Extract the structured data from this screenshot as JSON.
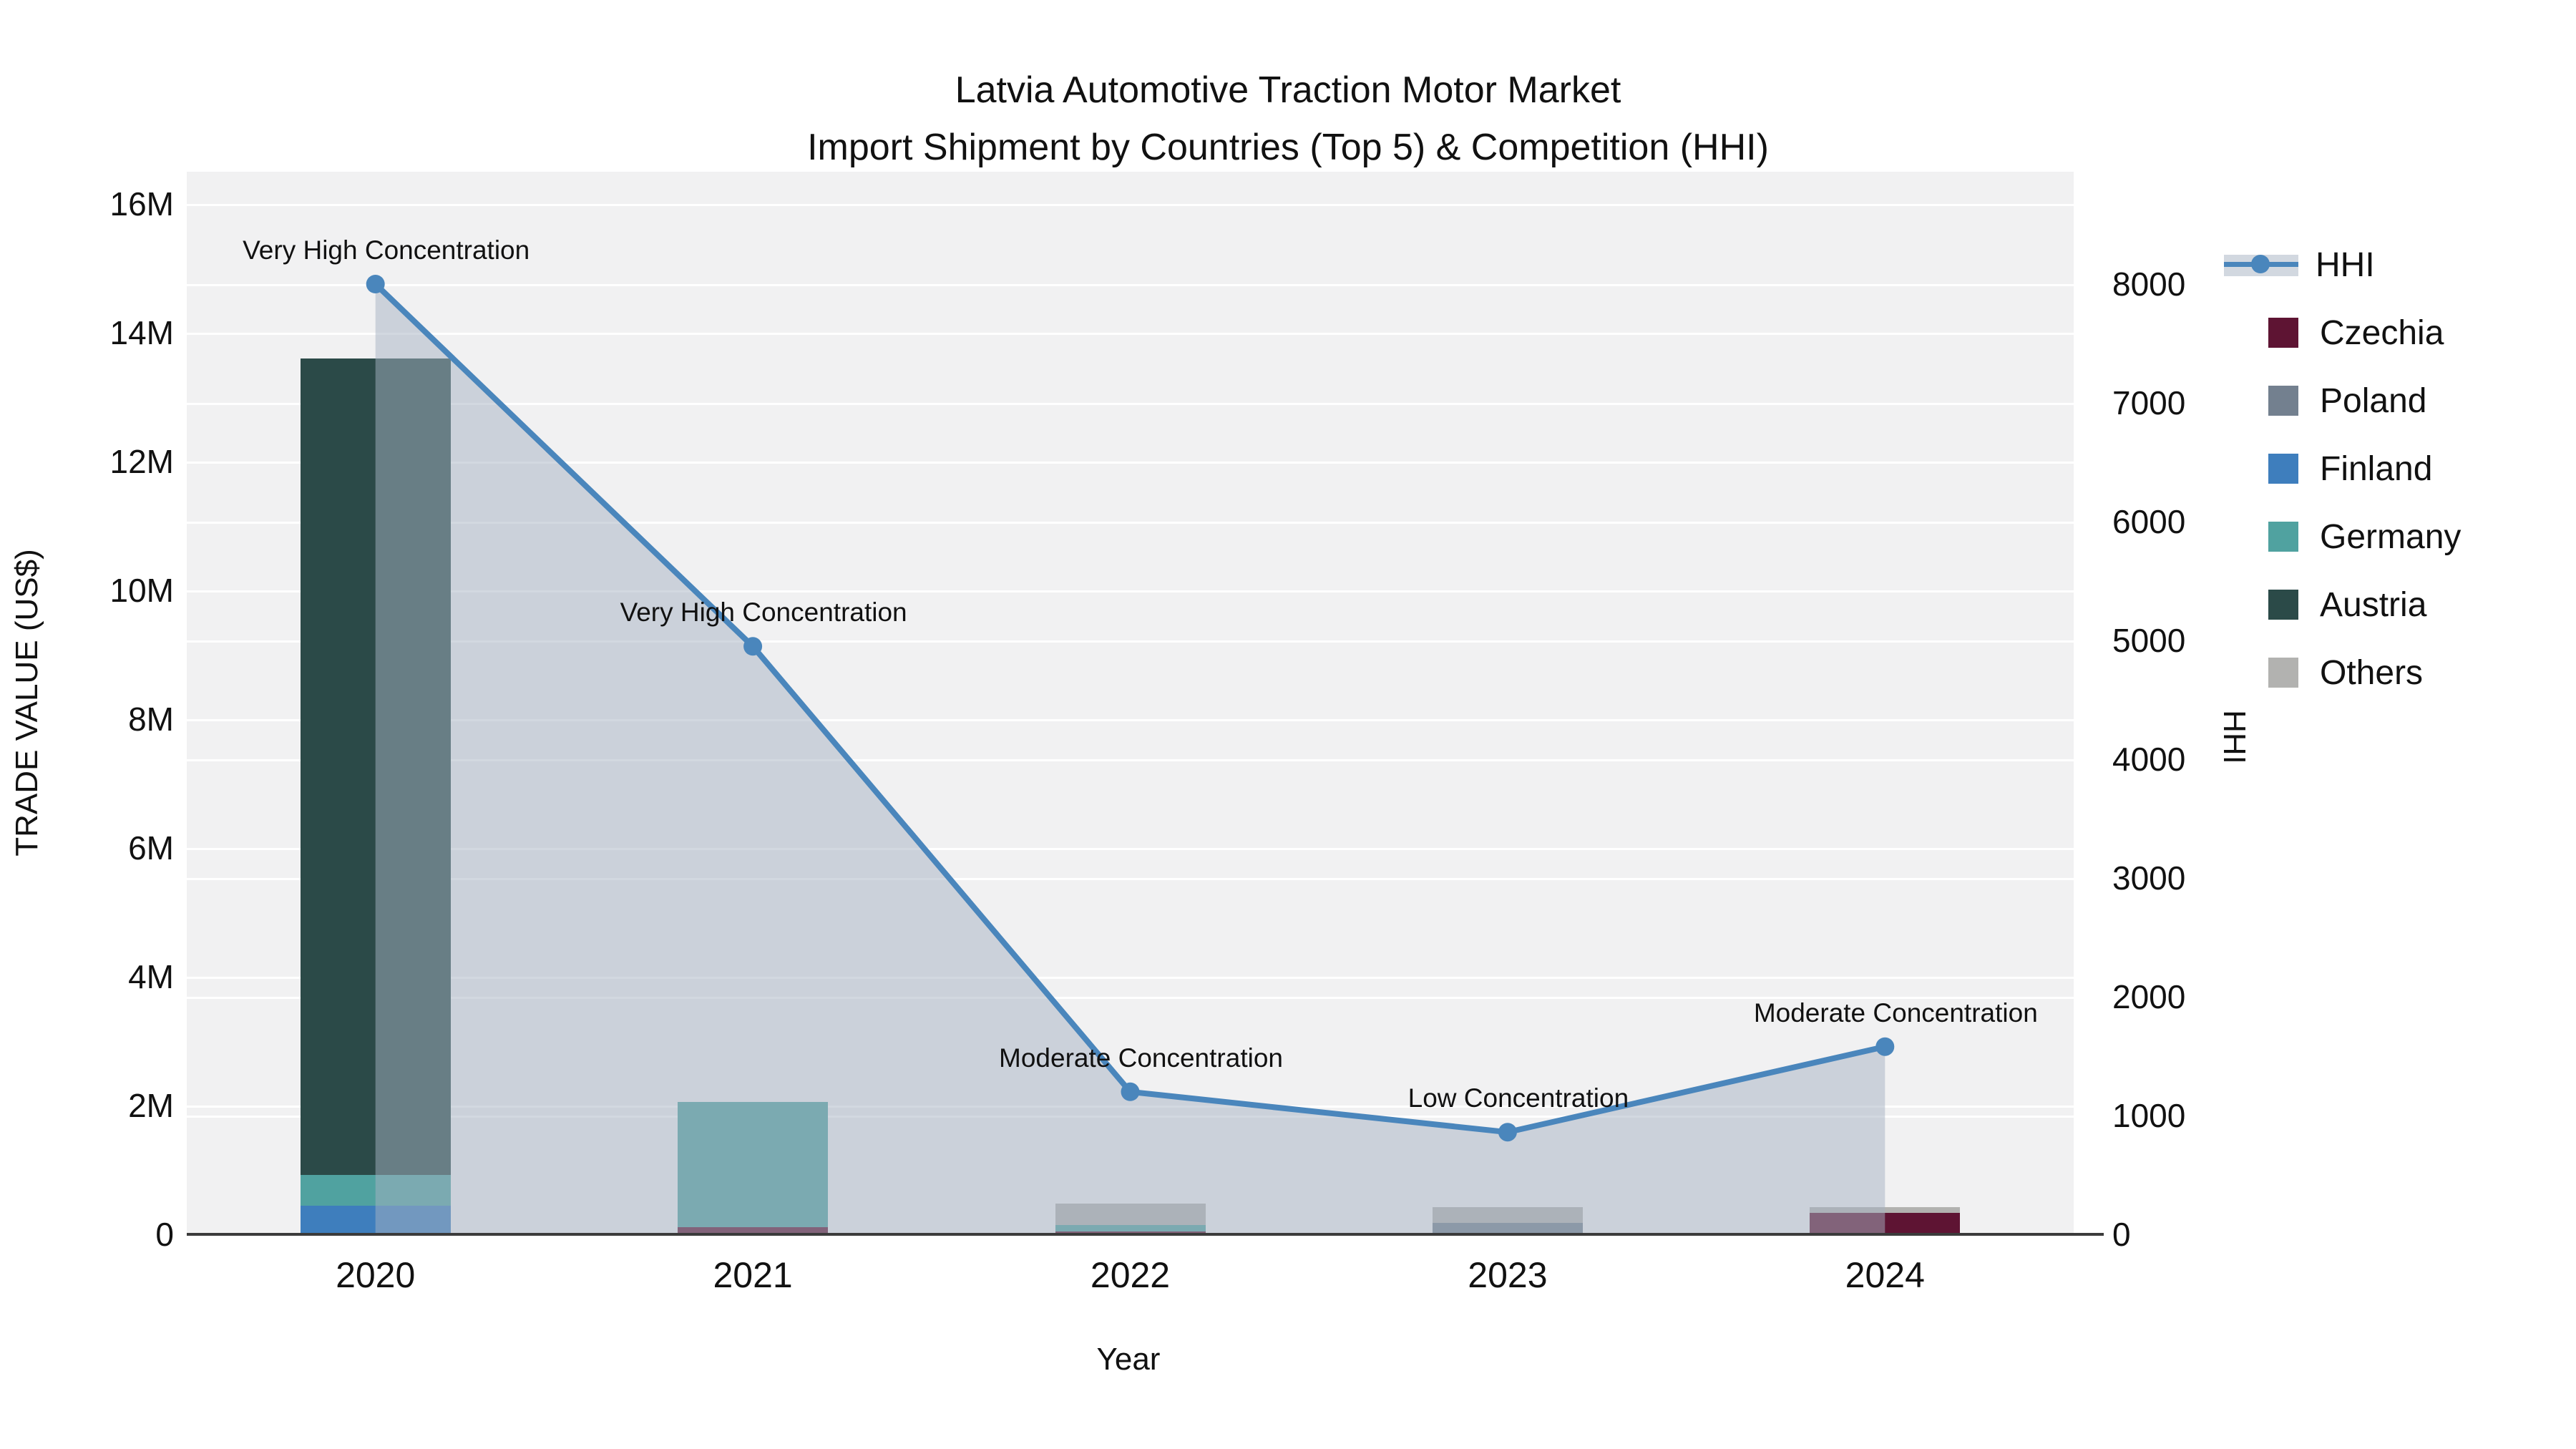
{
  "title": {
    "line1": "Latvia Automotive Traction Motor Market",
    "line2": "Import Shipment by Countries (Top 5) & Competition (HHI)"
  },
  "axes": {
    "x_title": "Year",
    "y_left_title": "TRADE VALUE (US$)",
    "y_right_title": "HHI",
    "y_left_ticks": [
      "0",
      "2M",
      "4M",
      "6M",
      "8M",
      "10M",
      "12M",
      "14M",
      "16M"
    ],
    "y_right_ticks": [
      "0",
      "1000",
      "2000",
      "3000",
      "4000",
      "5000",
      "6000",
      "7000",
      "8000"
    ]
  },
  "chart_data": {
    "type": "bar",
    "subtype": "stacked bars with line on secondary axis",
    "categories": [
      "2020",
      "2021",
      "2022",
      "2023",
      "2024"
    ],
    "series": [
      {
        "name": "Others",
        "color": "#b2b2b0",
        "values_musd": [
          0.17,
          0.17,
          0.48,
          0.42,
          0.42
        ]
      },
      {
        "name": "Austria",
        "color": "#2b4a48",
        "values_musd": [
          13.6,
          0.5,
          0.0,
          0.0,
          0.0
        ]
      },
      {
        "name": "Germany",
        "color": "#50a2a0",
        "values_musd": [
          0.92,
          2.06,
          0.14,
          0.12,
          0.14
        ]
      },
      {
        "name": "Finland",
        "color": "#3e7ebd",
        "values_musd": [
          0.44,
          0.11,
          0.0,
          0.11,
          0.11
        ]
      },
      {
        "name": "Poland",
        "color": "#73808f",
        "values_musd": [
          0.0,
          0.07,
          0.02,
          0.18,
          0.24
        ]
      },
      {
        "name": "Czechia",
        "color": "#5e1433",
        "values_musd": [
          0.0,
          0.11,
          0.04,
          0.02,
          0.33
        ]
      }
    ],
    "line_series": {
      "name": "HHI",
      "color": "#4a86bc",
      "area_fill": "rgba(165,178,194,0.5)",
      "values": [
        8000,
        4950,
        1200,
        860,
        1580
      ]
    },
    "annotations": [
      {
        "year": "2020",
        "text": "Very High Concentration"
      },
      {
        "year": "2021",
        "text": "Very High Concentration"
      },
      {
        "year": "2022",
        "text": "Moderate Concentration"
      },
      {
        "year": "2023",
        "text": "Low Concentration"
      },
      {
        "year": "2024",
        "text": "Moderate Concentration"
      }
    ],
    "title": "Latvia Automotive Traction Motor Market — Import Shipment by Countries (Top 5) & Competition (HHI)",
    "xlabel": "Year",
    "ylabel_left": "TRADE VALUE (US$)",
    "ylabel_right": "HHI",
    "ylim_left_usd": [
      0,
      16500000
    ],
    "ylim_right_hhi": [
      0,
      9000
    ],
    "grid": true,
    "legend_position": "right"
  },
  "legend": {
    "items": [
      {
        "label": "HHI",
        "type": "line"
      },
      {
        "label": "Czechia",
        "type": "swatch",
        "color": "#5e1433"
      },
      {
        "label": "Poland",
        "type": "swatch",
        "color": "#73808f"
      },
      {
        "label": "Finland",
        "type": "swatch",
        "color": "#3e7ebd"
      },
      {
        "label": "Germany",
        "type": "swatch",
        "color": "#50a2a0"
      },
      {
        "label": "Austria",
        "type": "swatch",
        "color": "#2b4a48"
      },
      {
        "label": "Others",
        "type": "swatch",
        "color": "#b2b2b0"
      }
    ]
  }
}
